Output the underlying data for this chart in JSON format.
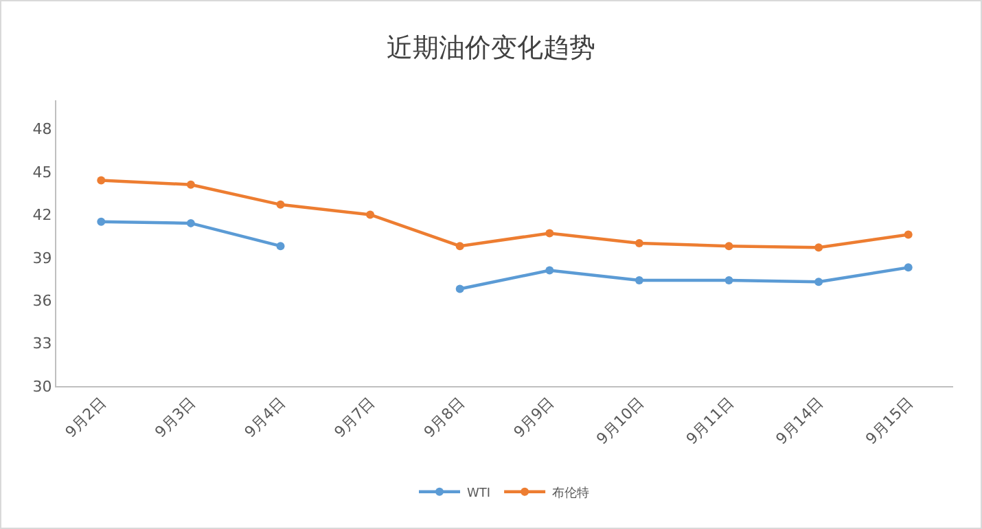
{
  "chart_data": {
    "type": "line",
    "title": "近期油价变化趋势",
    "categories": [
      "9月2日",
      "9月3日",
      "9月4日",
      "9月7日",
      "9月8日",
      "9月9日",
      "9月10日",
      "9月11日",
      "9月14日",
      "9月15日"
    ],
    "series": [
      {
        "name": "WTI",
        "color": "#5b9bd5",
        "values": [
          41.5,
          41.4,
          39.8,
          null,
          36.8,
          38.1,
          37.4,
          37.4,
          37.3,
          38.3
        ]
      },
      {
        "name": "布伦特",
        "color": "#ed7d31",
        "values": [
          44.4,
          44.1,
          42.7,
          42.0,
          39.8,
          40.7,
          40.0,
          39.8,
          39.7,
          40.6
        ]
      }
    ],
    "ylim": [
      30,
      50
    ],
    "yticks": [
      30,
      33,
      36,
      39,
      42,
      45,
      48
    ],
    "grid": false,
    "legend": "bottom",
    "marker": "circle",
    "line_style": "solid"
  }
}
